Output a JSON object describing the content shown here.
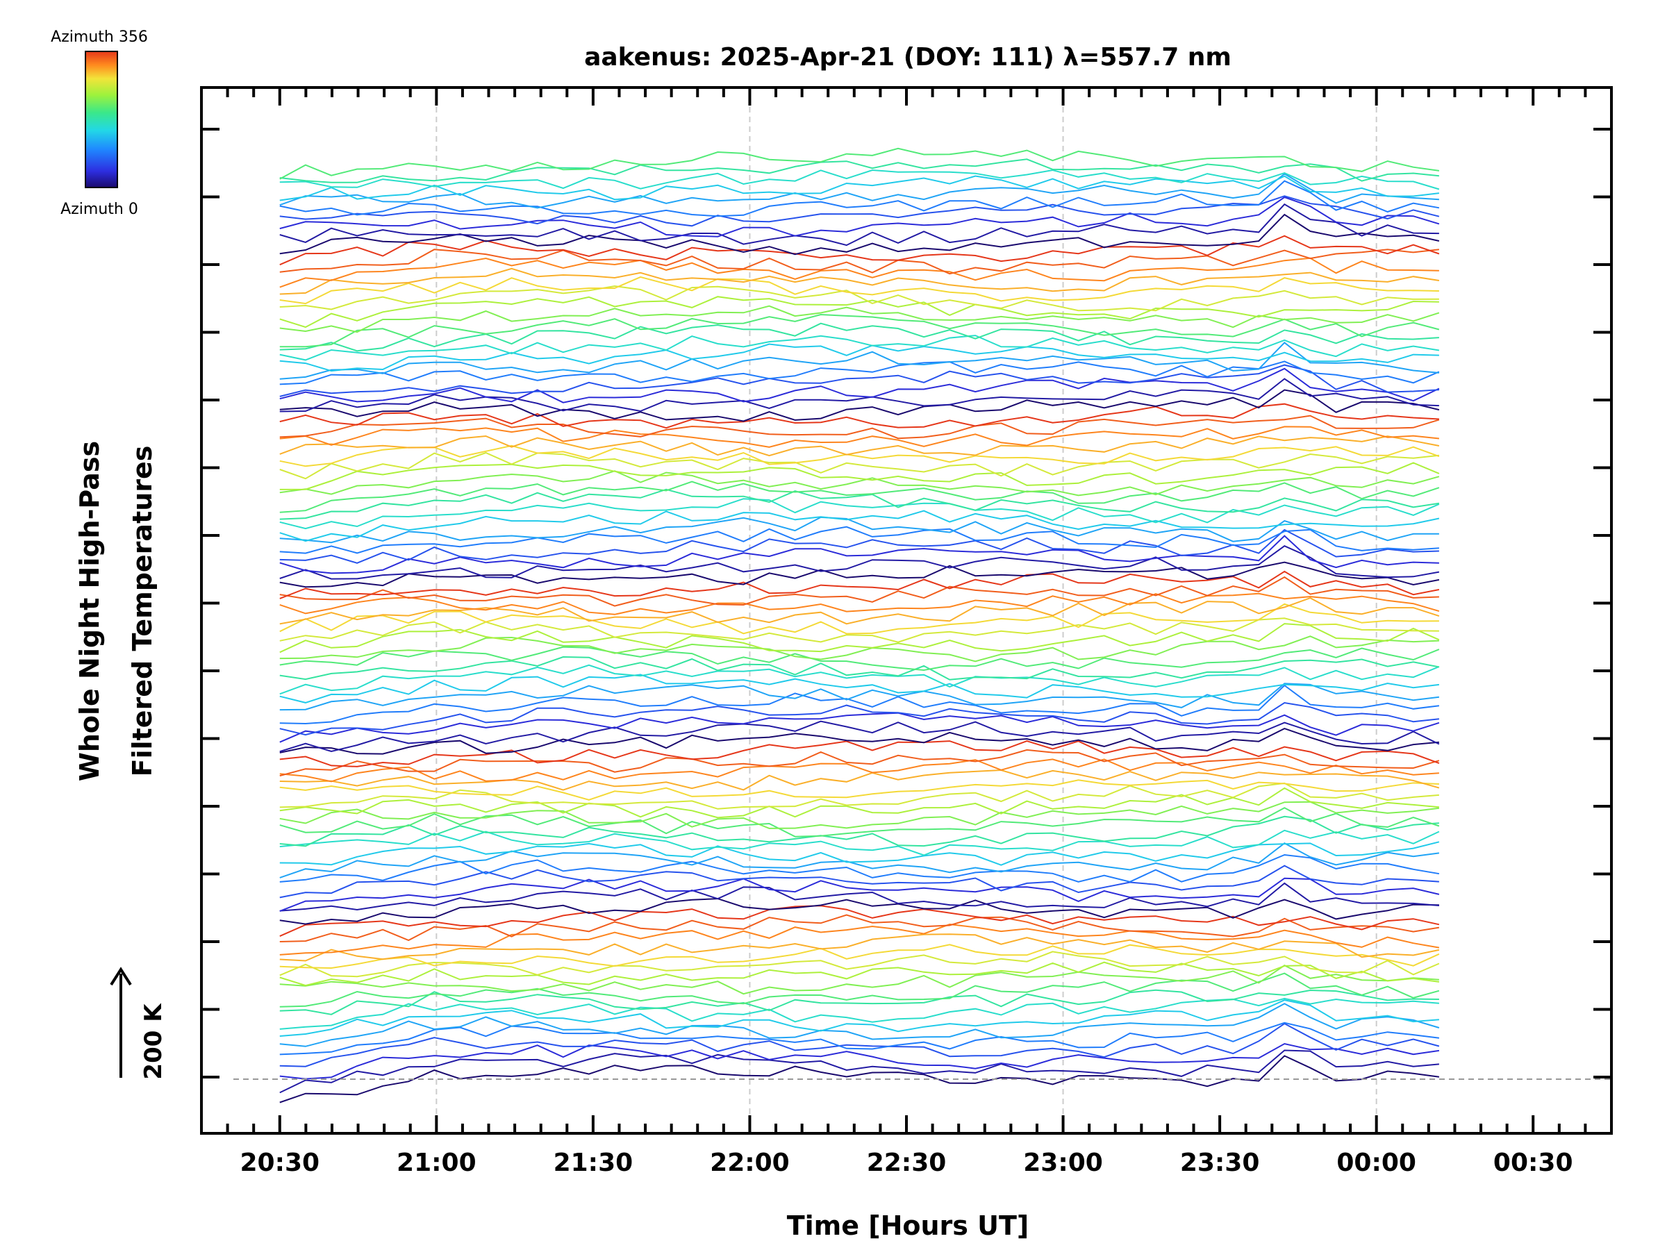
{
  "chart_data": {
    "type": "line",
    "title": "aakenus: 2025-Apr-21 (DOY: 111) λ=557.7 nm",
    "xlabel": "Time [Hours UT]",
    "ylabel_line1": "Whole Night High-Pass",
    "ylabel_line2": "Filtered Temperatures",
    "x_ticks": [
      "20:30",
      "21:00",
      "21:30",
      "22:00",
      "22:30",
      "23:00",
      "23:30",
      "00:00",
      "00:30"
    ],
    "x_range_hours": [
      20.25,
      24.75
    ],
    "data_time_range_hours": [
      20.5,
      24.2
    ],
    "colorbar": {
      "top_label": "Azimuth 356",
      "bottom_label": "Azimuth 0",
      "colors": [
        "#1a0a6e",
        "#2d2ee0",
        "#1f88ff",
        "#22d8e6",
        "#3ae88a",
        "#9ef23c",
        "#f2e43a",
        "#ff8a1e",
        "#e5371a"
      ]
    },
    "scale_bar_label": "200 K",
    "grid": "vertical dashed at hour marks",
    "series_count": 100,
    "series_color_cycle": "azimuth 0 (dark navy) to azimuth 356 (red)"
  }
}
